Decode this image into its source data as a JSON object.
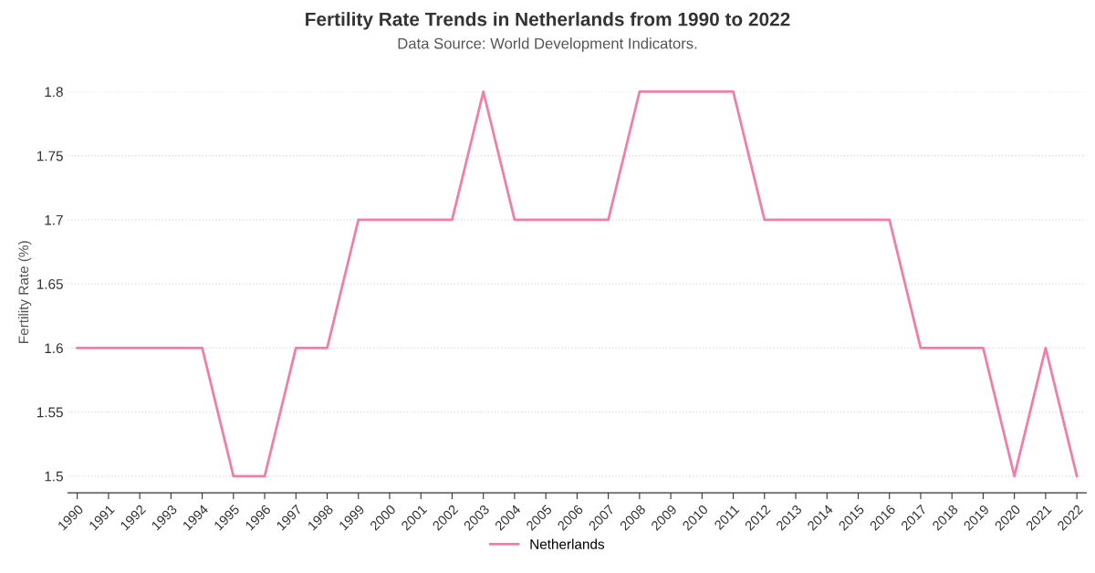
{
  "chart_data": {
    "type": "line",
    "title": "Fertility Rate Trends in Netherlands from 1990 to 2022",
    "subtitle": "Data Source: World Development Indicators.",
    "ylabel": "Fertility Rate (%)",
    "categories": [
      "1990",
      "1991",
      "1992",
      "1993",
      "1994",
      "1995",
      "1996",
      "1997",
      "1998",
      "1999",
      "2000",
      "2001",
      "2002",
      "2003",
      "2004",
      "2005",
      "2006",
      "2007",
      "2008",
      "2009",
      "2010",
      "2011",
      "2012",
      "2013",
      "2014",
      "2015",
      "2016",
      "2017",
      "2018",
      "2019",
      "2020",
      "2021",
      "2022"
    ],
    "series": [
      {
        "name": "Netherlands",
        "color": "#ef7fa8",
        "values": [
          1.6,
          1.6,
          1.6,
          1.6,
          1.6,
          1.5,
          1.5,
          1.6,
          1.6,
          1.7,
          1.7,
          1.7,
          1.7,
          1.8,
          1.7,
          1.7,
          1.7,
          1.7,
          1.8,
          1.8,
          1.8,
          1.8,
          1.7,
          1.7,
          1.7,
          1.7,
          1.7,
          1.6,
          1.6,
          1.6,
          1.5,
          1.6,
          1.5
        ]
      }
    ],
    "ylim": [
      1.487,
      1.8
    ],
    "yticks": [
      1.5,
      1.55,
      1.6,
      1.65,
      1.7,
      1.75,
      1.8
    ],
    "grid": "y",
    "legend": "bottom",
    "marker": "none",
    "line_style": "solid"
  }
}
